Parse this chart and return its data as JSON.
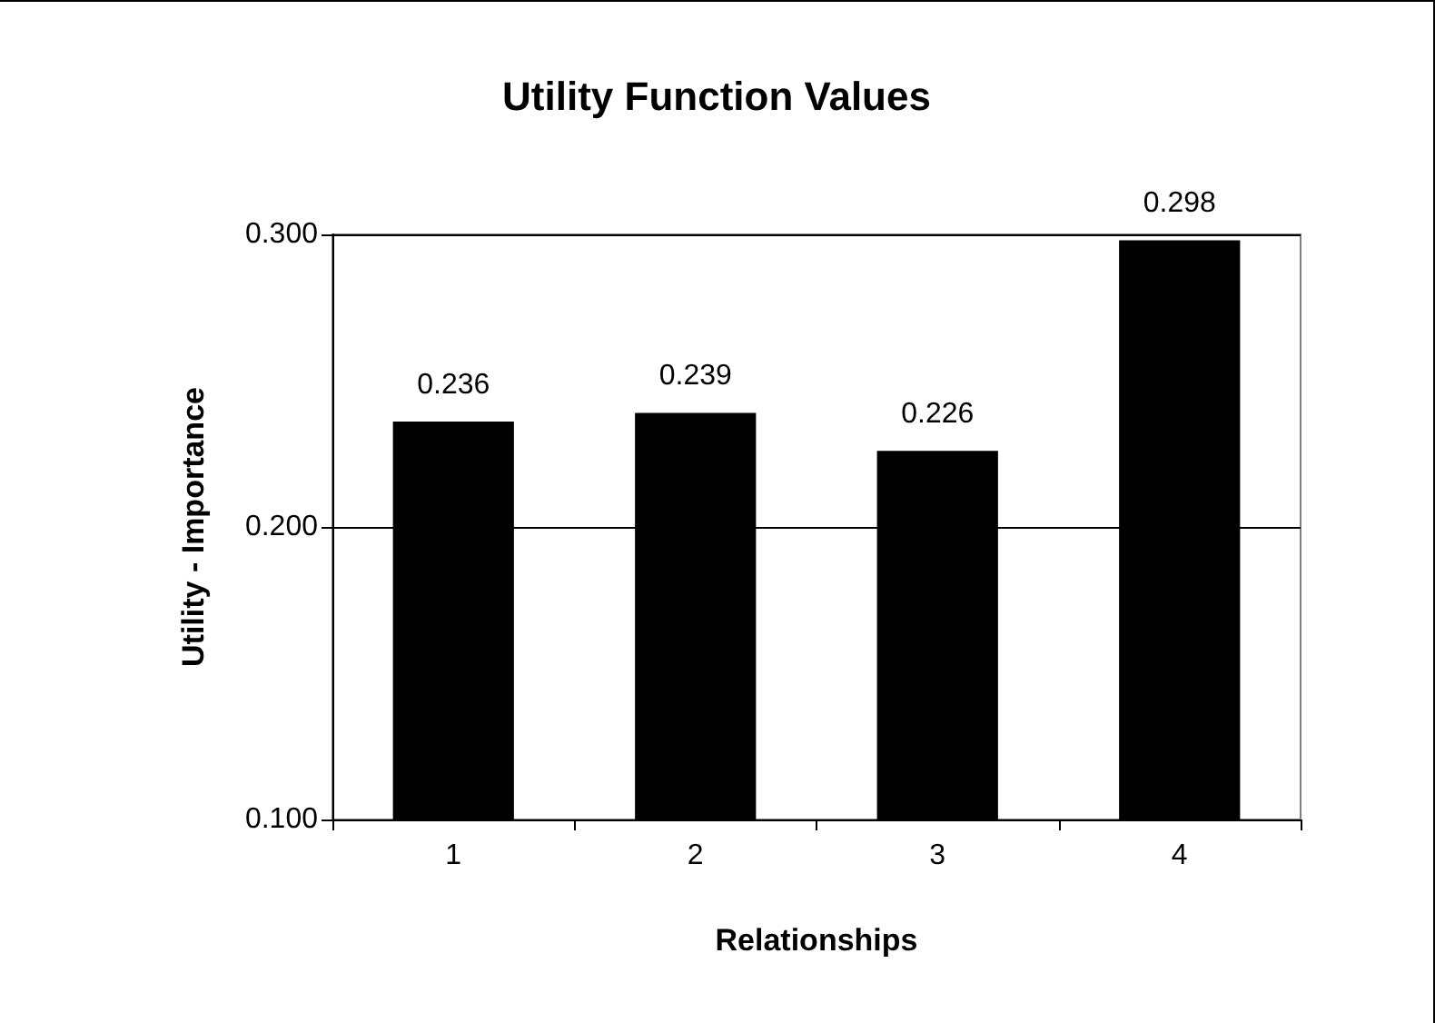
{
  "chart_data": {
    "type": "bar",
    "title": "Utility Function Values",
    "xlabel": "Relationships",
    "ylabel": "Utility - Importance",
    "categories": [
      "1",
      "2",
      "3",
      "4"
    ],
    "values": [
      0.236,
      0.239,
      0.226,
      0.298
    ],
    "color": "#000000",
    "ylim": [
      0.1,
      0.3
    ],
    "yticks": [
      {
        "value": 0.1,
        "label": "0.100"
      },
      {
        "value": 0.2,
        "label": "0.200"
      },
      {
        "value": 0.3,
        "label": "0.300"
      }
    ],
    "grid": "y",
    "data_labels": true
  }
}
